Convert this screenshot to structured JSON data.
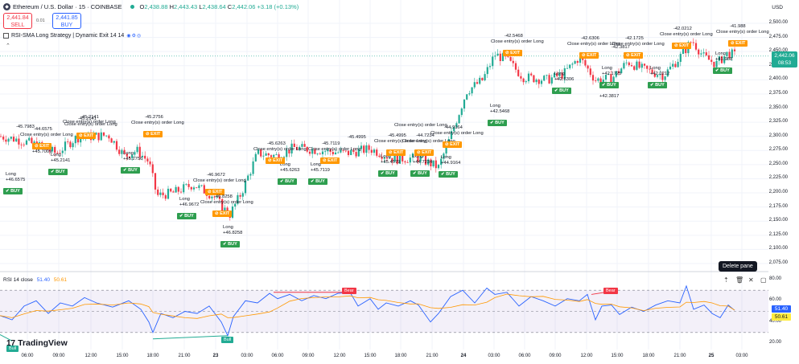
{
  "header": {
    "eth_icon": "ethereum-icon",
    "title": "Ethereum / U.S. Dollar · 15 · COINBASE",
    "ohlc": [
      {
        "k": "O",
        "v": "2,438.88"
      },
      {
        "k": "H",
        "v": "2,443.43"
      },
      {
        "k": "L",
        "v": "2,438.64"
      },
      {
        "k": "C",
        "v": "2,442.06 +3.18 (+0.13%)"
      }
    ],
    "sell_price": "2,441.84",
    "sell_label": "SELL",
    "spread": "0.01",
    "buy_price": "2,441.85",
    "buy_label": "BUY",
    "strategy": "RSI-SMA Long Strategy | Dynamic Exit 14 14",
    "collapse_icon": "chevron-up-icon"
  },
  "price_axis": {
    "currency": "USD",
    "ticks": [
      "2,500.00",
      "2,475.00",
      "2,450.00",
      "2,425.00",
      "2,400.00",
      "2,375.00",
      "2,350.00",
      "2,325.00",
      "2,300.00",
      "2,275.00",
      "2,250.00",
      "2,225.00",
      "2,200.00",
      "2,175.00",
      "2,150.00",
      "2,125.00",
      "2,100.00",
      "2,075.00"
    ],
    "current_price": "2,442.06",
    "countdown": "08:53"
  },
  "rsi_axis": {
    "ticks": [
      "80.00",
      "60.00",
      "40.00",
      "20.00"
    ],
    "rsi_value": "51.40",
    "sma_value": "50.61"
  },
  "rsi_pane": {
    "name": "RSI",
    "params": "14 close",
    "rsi": "51.40",
    "sma": "50.61",
    "bear_label": "Bear",
    "bull_label": "Bull",
    "tooltip": "Delete pane"
  },
  "time_axis": [
    "06:00",
    "09:00",
    "12:00",
    "15:00",
    "18:00",
    "21:00",
    "23",
    "03:00",
    "06:00",
    "09:00",
    "12:00",
    "15:00",
    "18:00",
    "21:00",
    "24",
    "03:00",
    "06:00",
    "09:00",
    "12:00",
    "15:00",
    "18:00",
    "21:00",
    "25",
    "03:00"
  ],
  "logo": "TradingView",
  "trades": {
    "long": "Long",
    "close_text": "Close entry(s) order Long",
    "buy": "BUY",
    "exit": "EXIT",
    "values": [
      "+46.6575",
      "+45.7009",
      "+45.2141",
      "-45.2141",
      "-44.6575",
      "-45.7983",
      "+45.2756",
      "-45.2756",
      "-46.9672",
      "+46.9672",
      "+46.8258",
      "-46.8258",
      "+45.6263",
      "-45.6263",
      "+45.7119",
      "-45.7119",
      "+45.4579",
      "-45.4995",
      "-44.7234",
      "+44.7234",
      "-42.5468",
      "+42.5468",
      "-42.6306",
      "+42.6306",
      "-42.0212",
      "+42.0212",
      "-41.988",
      "+41.988",
      "-42.1725",
      "+42.1725",
      "-42.3817",
      "+42.3817",
      "-44.9164",
      "+44.9164"
    ]
  },
  "colors": {
    "up": "#22ab94",
    "down": "#f23645",
    "rsi_line": "#2962ff",
    "rsi_sma": "#ff9800",
    "buy_signal": "#2e9e4f",
    "exit_signal": "#ff9800"
  }
}
